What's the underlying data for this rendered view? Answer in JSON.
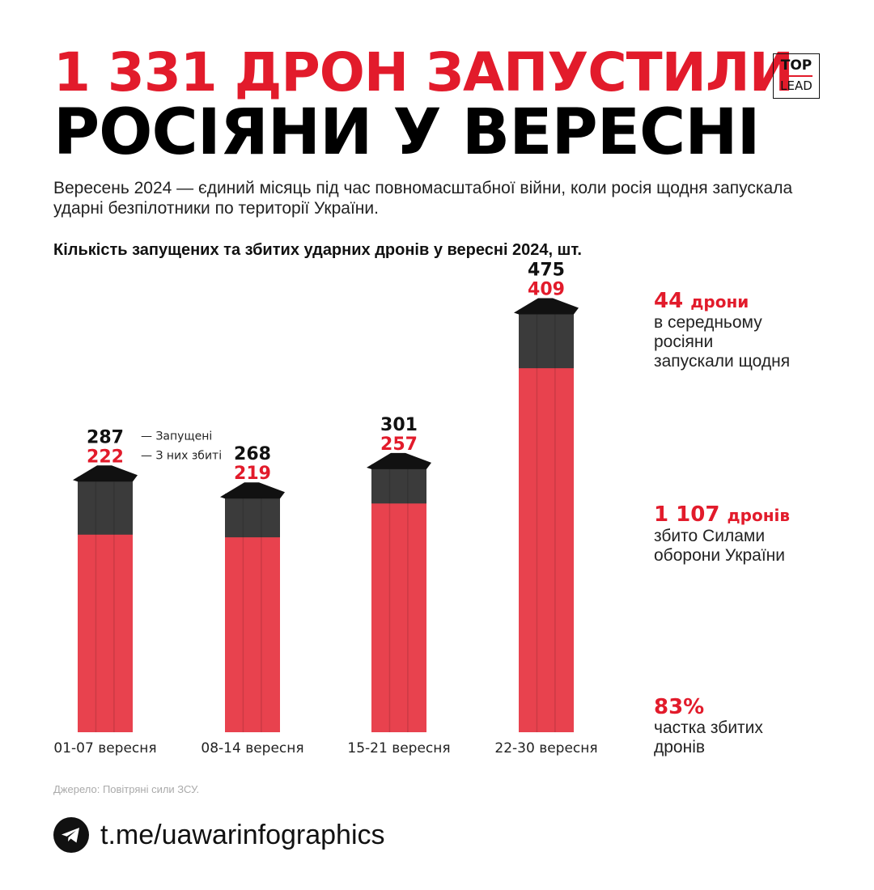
{
  "header": {
    "title_line1": "1 331 ДРОН ЗАПУСТИЛИ",
    "title_line2": "РОСІЯНИ У ВЕРЕСНІ",
    "logo_top": "TOP",
    "logo_bottom": "LEAD"
  },
  "subtitle": "Вересень 2024 — єдиний місяць під час повномасштабної війни, коли росія щодня запускала ударні безпілотники по території України.",
  "chart_data": {
    "type": "bar",
    "title": "Кількість запущених та збитих ударних дронів у вересні 2024, шт.",
    "categories": [
      "01-07 вересня",
      "08-14 вересня",
      "15-21 вересня",
      "22-30 вересня"
    ],
    "series": [
      {
        "name": "Запущені",
        "values": [
          287,
          268,
          301,
          475
        ]
      },
      {
        "name": "З них збиті",
        "values": [
          222,
          219,
          257,
          409
        ]
      }
    ],
    "legend": {
      "launched": "— Запущені",
      "shot_down": "— З них збиті",
      "placement": "beside first bar"
    },
    "colors": {
      "launched": "#3b3b3b",
      "shot_down": "#e8424e"
    },
    "grid": false
  },
  "stats": [
    {
      "value": "44",
      "unit": "дрони",
      "desc": "в середньому росіяни запускали щодня"
    },
    {
      "value": "1 107",
      "unit": "дронів",
      "desc": "збито Силами оборони України"
    },
    {
      "value": "83%",
      "unit": "",
      "desc": "частка збитих дронів"
    }
  ],
  "footer": {
    "source": "Джерело: Повітряні сили ЗСУ.",
    "link": "t.me/uawarinfographics",
    "icon": "telegram-icon"
  }
}
